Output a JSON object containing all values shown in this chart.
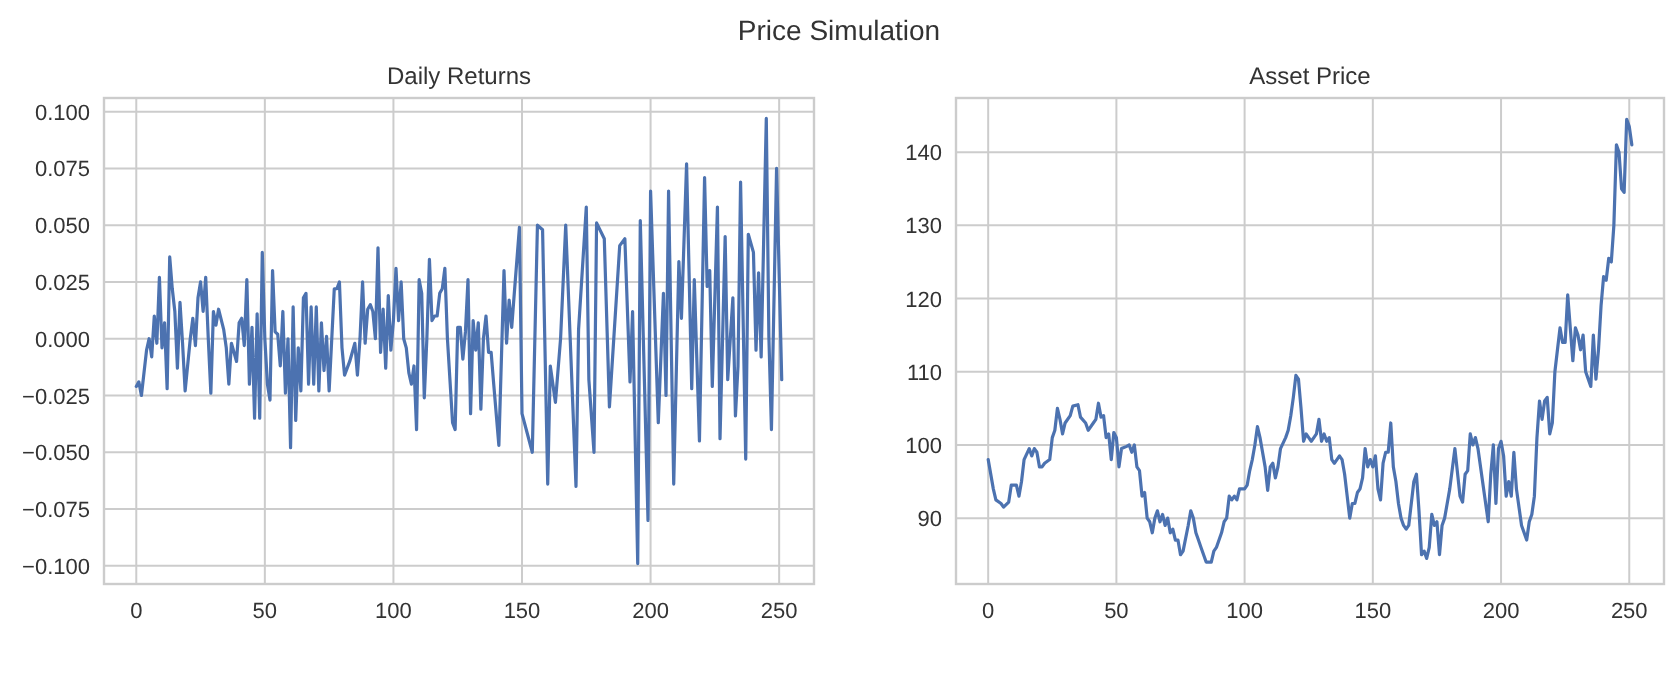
{
  "chart_data": [
    {
      "type": "line",
      "title": "Daily Returns",
      "annotations": [
        "Price Simulation"
      ],
      "xlim": [
        -12.55,
        263.55
      ],
      "ylim": [
        -0.108,
        0.106
      ],
      "xticks": [
        0,
        50,
        100,
        150,
        200,
        250
      ],
      "yticks": [
        {
          "value": -0.1,
          "label": "−0.100"
        },
        {
          "value": -0.075,
          "label": "−0.075"
        },
        {
          "value": -0.05,
          "label": "−0.050"
        },
        {
          "value": -0.025,
          "label": "−0.025"
        },
        {
          "value": 0,
          "label": "0.000"
        },
        {
          "value": 0.025,
          "label": "0.025"
        },
        {
          "value": 0.05,
          "label": "0.050"
        },
        {
          "value": 0.075,
          "label": "0.075"
        },
        {
          "value": 0.1,
          "label": "0.100"
        }
      ],
      "grid": true,
      "series": [
        {
          "color": "#4c72b0",
          "x": [
            0,
            1,
            2,
            4,
            5,
            6,
            7,
            8,
            9,
            10,
            11,
            12,
            13,
            14,
            15,
            16,
            17,
            18,
            19,
            21,
            22,
            23,
            24,
            25,
            26,
            27,
            28,
            29,
            30,
            31,
            32,
            34,
            35,
            36,
            37,
            39,
            40,
            41,
            42,
            43,
            44,
            45,
            46,
            47,
            48,
            49,
            50,
            51,
            52,
            53,
            54,
            55,
            56,
            57,
            58,
            59,
            60,
            61,
            62,
            63,
            64,
            65,
            66,
            67,
            68,
            69,
            70,
            71,
            72,
            73,
            74,
            75,
            77,
            78,
            79,
            80,
            81,
            83,
            85,
            86,
            87,
            88,
            89,
            90,
            91,
            92,
            93,
            94,
            95,
            96,
            97,
            98,
            99,
            100,
            101,
            102,
            103,
            104,
            105,
            106,
            107,
            108,
            109,
            110,
            111,
            112,
            113,
            114,
            115,
            116,
            117,
            118,
            119,
            120,
            121,
            123,
            124,
            125,
            126,
            127,
            128,
            129,
            130,
            131,
            132,
            133,
            134,
            135,
            136,
            137,
            138,
            139,
            141,
            143,
            144,
            145,
            146,
            147,
            149,
            150,
            154,
            156,
            158,
            160,
            161,
            163,
            165,
            167,
            171,
            172,
            175,
            176,
            178,
            179,
            182,
            184,
            188,
            190,
            192,
            193,
            195,
            196,
            199,
            200,
            203,
            205,
            206,
            207,
            209,
            211,
            212,
            214,
            216,
            217,
            219,
            221,
            222,
            223,
            224,
            226,
            227,
            229,
            230,
            232,
            233,
            234,
            235,
            237,
            238,
            240,
            241,
            242,
            243,
            245,
            246,
            247,
            249,
            251
          ],
          "values": [
            -0.021,
            -0.019,
            -0.025,
            -0.005,
            0.0,
            -0.008,
            0.01,
            -0.002,
            0.027,
            -0.004,
            0.007,
            -0.022,
            0.036,
            0.022,
            0.012,
            -0.013,
            0.016,
            -0.002,
            -0.023,
            0.0,
            0.009,
            -0.003,
            0.018,
            0.025,
            0.012,
            0.027,
            0.0,
            -0.024,
            0.012,
            0.006,
            0.013,
            0.004,
            -0.004,
            -0.02,
            -0.002,
            -0.01,
            0.007,
            0.009,
            -0.003,
            0.026,
            -0.02,
            0.005,
            -0.035,
            0.011,
            -0.035,
            0.038,
            0.0,
            -0.02,
            -0.027,
            0.03,
            0.003,
            0.002,
            -0.012,
            0.012,
            -0.024,
            0.0,
            -0.048,
            0.014,
            -0.036,
            -0.004,
            -0.023,
            0.018,
            0.02,
            -0.02,
            0.014,
            -0.02,
            0.014,
            -0.023,
            0.007,
            -0.014,
            0.001,
            -0.023,
            0.022,
            0.022,
            0.025,
            -0.004,
            -0.016,
            -0.01,
            -0.002,
            -0.016,
            0.0,
            0.025,
            -0.002,
            0.013,
            0.015,
            0.012,
            0.0,
            0.04,
            -0.006,
            0.013,
            -0.013,
            0.019,
            -0.005,
            0.008,
            0.031,
            0.008,
            0.025,
            0.0,
            -0.004,
            -0.015,
            -0.02,
            -0.012,
            -0.04,
            0.026,
            0.02,
            -0.026,
            0.0,
            0.035,
            0.008,
            0.01,
            0.01,
            0.02,
            0.022,
            0.031,
            0.0,
            -0.037,
            -0.04,
            0.005,
            0.005,
            -0.009,
            0.003,
            0.026,
            -0.033,
            0.008,
            -0.005,
            0.007,
            -0.031,
            0.0,
            0.01,
            -0.006,
            -0.006,
            -0.02,
            -0.047,
            0.03,
            -0.002,
            0.017,
            0.005,
            0.02,
            0.049,
            -0.033,
            -0.05,
            0.05,
            0.048,
            -0.064,
            -0.012,
            -0.028,
            0.0,
            0.05,
            -0.065,
            0.004,
            0.058,
            -0.018,
            -0.05,
            0.051,
            0.044,
            -0.03,
            0.041,
            0.044,
            -0.019,
            0.012,
            -0.099,
            0.052,
            -0.08,
            0.065,
            -0.037,
            0.02,
            -0.025,
            0.065,
            -0.064,
            0.034,
            0.009,
            0.077,
            -0.022,
            0.026,
            -0.045,
            0.071,
            0.023,
            0.03,
            -0.021,
            0.058,
            -0.044,
            0.045,
            -0.018,
            0.018,
            -0.034,
            -0.012,
            0.069,
            -0.053,
            0.046,
            0.038,
            -0.005,
            0.029,
            -0.008,
            0.097,
            0.001,
            -0.04,
            0.075,
            -0.018
          ]
        }
      ]
    },
    {
      "type": "line",
      "title": "Asset Price",
      "xlim": [
        -12.55,
        263.55
      ],
      "ylim": [
        81,
        147.4
      ],
      "xticks": [
        0,
        50,
        100,
        150,
        200,
        250
      ],
      "yticks": [
        90,
        100,
        110,
        120,
        130,
        140
      ],
      "grid": true,
      "series": [
        {
          "color": "#4c72b0",
          "x": [
            0,
            2,
            3,
            5,
            6,
            8,
            9,
            11,
            12,
            13,
            14,
            16,
            17,
            18,
            19,
            20,
            21,
            22,
            24,
            25,
            26,
            27,
            28,
            29,
            30,
            32,
            33,
            35,
            36,
            38,
            39,
            41,
            42,
            43,
            44,
            45,
            46,
            47,
            48,
            49,
            50,
            51,
            52,
            54,
            55,
            56,
            57,
            58,
            59,
            60,
            61,
            62,
            63,
            64,
            65,
            66,
            67,
            68,
            69,
            70,
            71,
            72,
            73,
            74,
            75,
            76,
            78,
            79,
            80,
            81,
            82,
            83,
            84,
            85,
            87,
            88,
            89,
            91,
            92,
            93,
            94,
            95,
            96,
            97,
            98,
            100,
            101,
            102,
            103,
            104,
            105,
            106,
            107,
            108,
            109,
            110,
            111,
            112,
            113,
            114,
            116,
            117,
            118,
            119,
            120,
            121,
            122,
            123,
            124,
            125,
            126,
            127,
            128,
            129,
            130,
            131,
            132,
            133,
            134,
            135,
            136,
            137,
            138,
            139,
            140,
            141,
            142,
            143,
            144,
            145,
            146,
            147,
            148,
            149,
            150,
            151,
            152,
            153,
            154,
            155,
            156,
            157,
            158,
            159,
            160,
            161,
            162,
            163,
            164,
            165,
            166,
            167,
            168,
            169,
            170,
            171,
            172,
            173,
            174,
            175,
            176,
            177,
            178,
            179,
            180,
            182,
            184,
            185,
            186,
            187,
            188,
            189,
            190,
            191,
            195,
            196,
            197,
            198,
            199,
            200,
            201,
            202,
            203,
            204,
            205,
            206,
            208,
            210,
            211,
            212,
            213,
            214,
            215,
            216,
            217,
            218,
            219,
            220,
            221,
            222,
            223,
            224,
            225,
            226,
            227,
            228,
            229,
            230,
            231,
            232,
            233,
            235,
            236,
            237,
            238,
            239,
            240,
            241,
            242,
            243,
            244,
            245,
            246,
            247,
            248,
            249,
            250,
            251
          ],
          "values": [
            98,
            94,
            92.5,
            92,
            91.5,
            92.2,
            94.5,
            94.5,
            93,
            95,
            98,
            99.5,
            98.5,
            99.5,
            99,
            97,
            97,
            97.5,
            98,
            101,
            102,
            105,
            103.5,
            101.5,
            103,
            104,
            105.3,
            105.5,
            103.8,
            103,
            102,
            103,
            103.5,
            105.7,
            103.8,
            104,
            101,
            101.5,
            98,
            101.7,
            101,
            97,
            99.5,
            99.8,
            100,
            99,
            100,
            97,
            96.5,
            93,
            93.5,
            90,
            89.5,
            88,
            90,
            91,
            89.5,
            90.5,
            89,
            90,
            88,
            88.5,
            87,
            87,
            85,
            85.5,
            89,
            91,
            90,
            88,
            87,
            86,
            85,
            84,
            84,
            85.5,
            86,
            88,
            89.5,
            90,
            93,
            92.5,
            93,
            92.5,
            94,
            94,
            94.5,
            96.5,
            98,
            100,
            102.5,
            101,
            99,
            97,
            93.8,
            97,
            97.5,
            95.5,
            97,
            99.5,
            101,
            102,
            104,
            106.5,
            109.5,
            109,
            105,
            100.5,
            101.5,
            101,
            100.5,
            101,
            101.5,
            103.5,
            100.5,
            101.5,
            100.5,
            101,
            98,
            97.5,
            98,
            98.5,
            98,
            96,
            93,
            90,
            92,
            92,
            93.5,
            94,
            95.5,
            99.5,
            97,
            98,
            97,
            98.5,
            94,
            92.5,
            97.5,
            99,
            99,
            103,
            97,
            95,
            92,
            90,
            89,
            88.5,
            89,
            92,
            95,
            96,
            91,
            85,
            85.5,
            84.5,
            86,
            90.5,
            89,
            89.5,
            85,
            89,
            90,
            92,
            94,
            99.5,
            93,
            92.2,
            96,
            96.5,
            101.5,
            100,
            101,
            99.5,
            89.5,
            96,
            100,
            92,
            99.5,
            100.5,
            98.5,
            93,
            95,
            93,
            99,
            94,
            89,
            87,
            89.5,
            90.5,
            93,
            101,
            106,
            103.5,
            106,
            106.5,
            101.5,
            103,
            110,
            113,
            116,
            114,
            114,
            120.5,
            116,
            111.5,
            116,
            115,
            113,
            115,
            110,
            108,
            115,
            109,
            113,
            119,
            123,
            122.5,
            125.5,
            125,
            130,
            141,
            140,
            135,
            134.5,
            144.5,
            143.5,
            141
          ]
        }
      ]
    }
  ]
}
